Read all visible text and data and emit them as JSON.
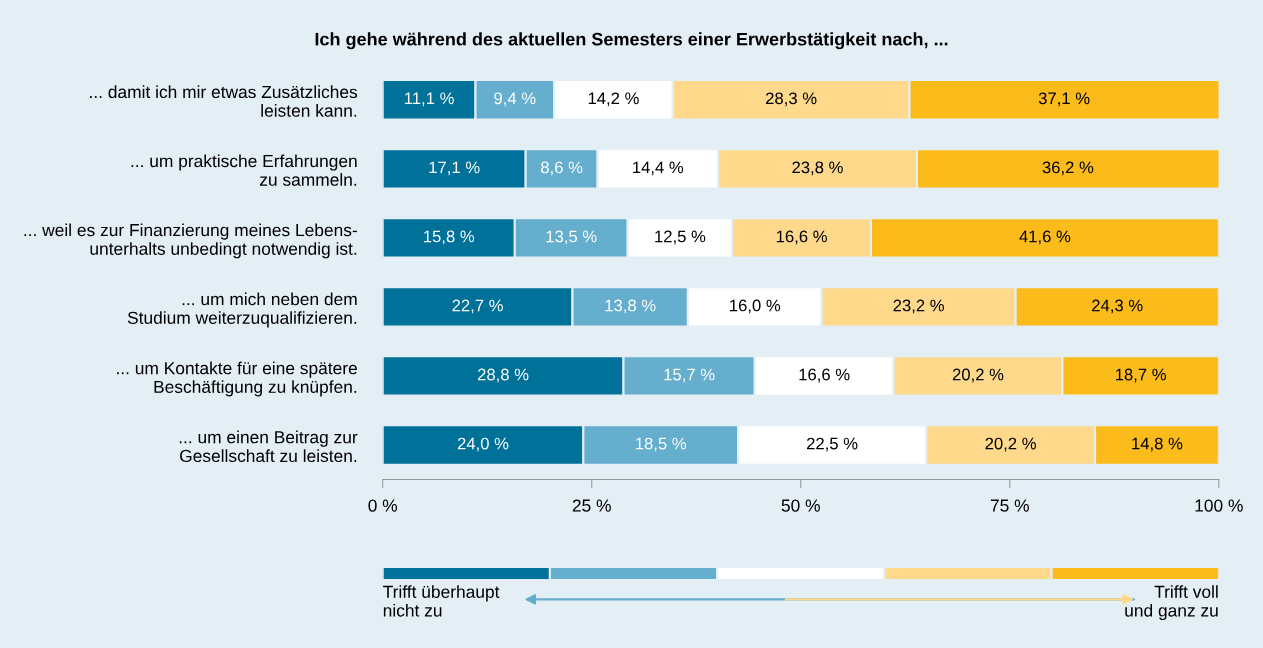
{
  "chart_data": {
    "type": "bar",
    "orientation": "horizontal",
    "stacked": true,
    "title": "Ich gehe während des aktuellen Semesters einer Erwerbstätigkeit nach, ...",
    "categories": [
      "... damit ich mir etwas Zusätzliches\nleisten kann.",
      "... um praktische Erfahrungen\nzu sammeln.",
      "... weil es zur Finanzierung meines Lebens-\nunterhalts unbedingt notwendig ist.",
      "... um mich neben dem\nStudium weiterzuqualifizieren.",
      "... um Kontakte für eine spätere\nBeschäftigung zu knüpfen.",
      "... um einen Beitrag zur\nGesellschaft zu leisten."
    ],
    "series": [
      {
        "color": "#00729a",
        "values": [
          11.1,
          17.1,
          15.8,
          22.7,
          28.8,
          24.0
        ],
        "value_labels": [
          "11,1 %",
          "17,1 %",
          "15,8 %",
          "22,7 %",
          "28,8 %",
          "24,0 %"
        ]
      },
      {
        "color": "#66aecd",
        "values": [
          9.4,
          8.6,
          13.5,
          13.8,
          15.7,
          18.5
        ],
        "value_labels": [
          "9,4 %",
          "8,6 %",
          "13,5 %",
          "13,8 %",
          "15,7 %",
          "18,5 %"
        ]
      },
      {
        "color": "#ffffff",
        "values": [
          14.2,
          14.4,
          12.5,
          16.0,
          16.6,
          22.5
        ],
        "value_labels": [
          "14,2 %",
          "14,4 %",
          "12,5 %",
          "16,0 %",
          "16,6 %",
          "22,5 %"
        ]
      },
      {
        "color": "#fed98c",
        "values": [
          28.3,
          23.8,
          16.6,
          23.2,
          20.2,
          20.2
        ],
        "value_labels": [
          "28,3 %",
          "23,8 %",
          "16,6 %",
          "23,2 %",
          "20,2 %",
          "20,2 %"
        ]
      },
      {
        "color": "#fbbb1a",
        "values": [
          37.1,
          36.2,
          41.6,
          24.3,
          18.7,
          14.8
        ],
        "value_labels": [
          "37,1 %",
          "36,2 %",
          "41,6 %",
          "24,3 %",
          "18,7 %",
          "14,8 %"
        ]
      }
    ],
    "xlim": [
      0,
      100
    ],
    "xticks": [
      {
        "value": 0,
        "label": "0 %"
      },
      {
        "value": 25,
        "label": "25 %"
      },
      {
        "value": 50,
        "label": "50 %"
      },
      {
        "value": 75,
        "label": "75 %"
      },
      {
        "value": 100,
        "label": "100 %"
      }
    ],
    "grid": false,
    "annotations": [
      "Trifft überhaupt\nnicht zu",
      "Trifft voll\nund ganz zu"
    ]
  }
}
